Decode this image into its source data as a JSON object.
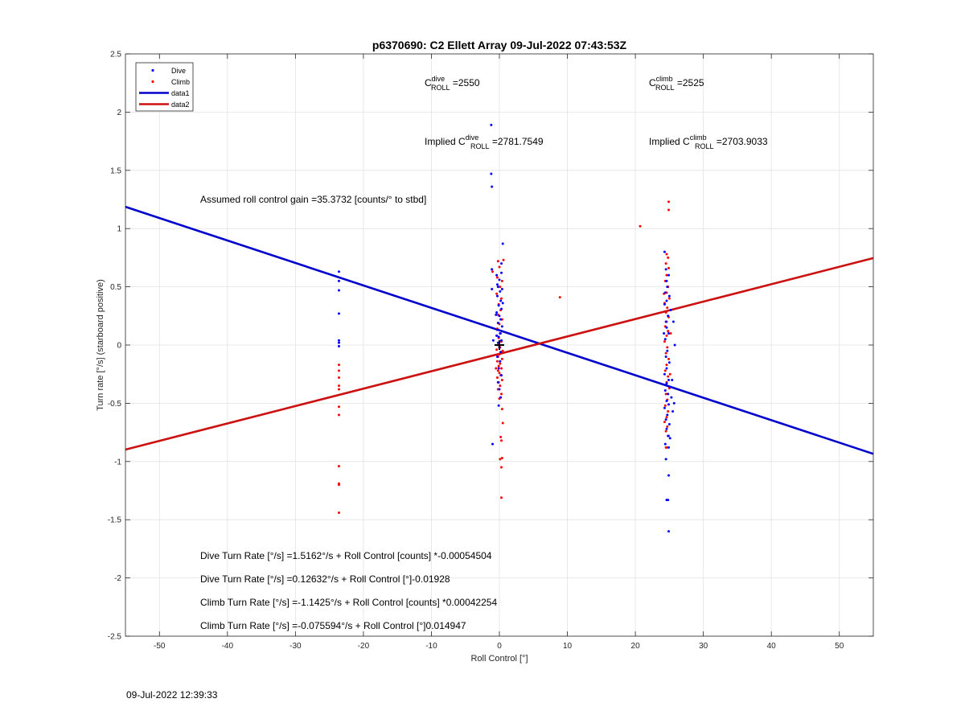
{
  "chart_data": {
    "type": "scatter",
    "title": "p6370690: C2 Ellett Array 09-Jul-2022 07:43:53Z",
    "xlabel": "Roll Control [°]",
    "ylabel": "Turn rate [°/s] (starboard positive)",
    "xlim": [
      -55,
      55
    ],
    "ylim": [
      -2.5,
      2.5
    ],
    "xticks": [
      -50,
      -40,
      -30,
      -20,
      -10,
      0,
      10,
      20,
      30,
      40,
      50
    ],
    "yticks": [
      -2.5,
      -2,
      -1.5,
      -1,
      -0.5,
      0,
      0.5,
      1,
      1.5,
      2,
      2.5
    ],
    "grid": true,
    "legend_position": "top-left",
    "legend": [
      "Dive",
      "Climb",
      "data1",
      "data2"
    ],
    "colors": {
      "dive": "#0000ff",
      "climb": "#ff0000",
      "data1": "#0000cc",
      "data2": "#cc1111",
      "marker": "#000000"
    },
    "lines": [
      {
        "name": "data1",
        "x": [
          -55,
          55
        ],
        "y": [
          1.1868,
          -0.9344
        ]
      },
      {
        "name": "data2",
        "x": [
          -55,
          55
        ],
        "y": [
          -0.8977,
          0.7464
        ]
      }
    ],
    "origin_marker": {
      "x": 0,
      "y": 0
    },
    "dive_points": [
      [
        -23.6,
        0.63
      ],
      [
        -23.6,
        0.55
      ],
      [
        -23.6,
        0.47
      ],
      [
        -23.6,
        0.27
      ],
      [
        -23.6,
        0.04
      ],
      [
        -23.6,
        0.02
      ],
      [
        -23.6,
        -0.01
      ],
      [
        -1.2,
        1.89
      ],
      [
        -1.2,
        1.47
      ],
      [
        -1.1,
        1.36
      ],
      [
        -1.1,
        0.65
      ],
      [
        -1.1,
        0.48
      ],
      [
        -1.0,
        -0.85
      ],
      [
        -0.9,
        0.04
      ],
      [
        0.5,
        0.87
      ],
      [
        0.3,
        0.62
      ],
      [
        -0.4,
        0.6
      ],
      [
        0.0,
        0.56
      ],
      [
        -0.2,
        0.5
      ],
      [
        0.1,
        0.46
      ],
      [
        -0.3,
        0.42
      ],
      [
        0.2,
        0.38
      ],
      [
        -0.1,
        0.34
      ],
      [
        0.3,
        0.31
      ],
      [
        -0.4,
        0.28
      ],
      [
        0.0,
        0.25
      ],
      [
        0.2,
        0.22
      ],
      [
        -0.2,
        0.19
      ],
      [
        0.4,
        0.16
      ],
      [
        -0.3,
        0.13
      ],
      [
        0.1,
        0.1
      ],
      [
        -0.1,
        0.07
      ],
      [
        0.3,
        0.04
      ],
      [
        -0.2,
        0.02
      ],
      [
        0.0,
        -0.02
      ],
      [
        0.2,
        -0.06
      ],
      [
        -0.3,
        -0.1
      ],
      [
        0.1,
        -0.14
      ],
      [
        -0.1,
        -0.2
      ],
      [
        0.3,
        -0.26
      ],
      [
        -0.2,
        -0.32
      ],
      [
        0.0,
        -0.38
      ],
      [
        0.2,
        -0.45
      ],
      [
        -0.1,
        -0.52
      ],
      [
        0.3,
        0.7
      ],
      [
        -0.3,
        0.52
      ],
      [
        0.5,
        0.36
      ],
      [
        -0.5,
        0.26
      ],
      [
        0.4,
        0.48
      ],
      [
        -0.4,
        0.08
      ],
      [
        24.3,
        0.8
      ],
      [
        24.5,
        0.65
      ],
      [
        24.9,
        0.6
      ],
      [
        24.6,
        0.55
      ],
      [
        24.7,
        0.5
      ],
      [
        24.4,
        0.45
      ],
      [
        25.0,
        0.42
      ],
      [
        24.6,
        0.38
      ],
      [
        24.3,
        0.35
      ],
      [
        25.2,
        0.3
      ],
      [
        24.8,
        0.25
      ],
      [
        24.5,
        0.2
      ],
      [
        25.6,
        0.2
      ],
      [
        24.6,
        0.15
      ],
      [
        24.9,
        0.1
      ],
      [
        24.4,
        0.05
      ],
      [
        25.8,
        0.0
      ],
      [
        24.7,
        -0.05
      ],
      [
        24.5,
        -0.1
      ],
      [
        25.0,
        -0.15
      ],
      [
        24.6,
        -0.2
      ],
      [
        24.3,
        -0.25
      ],
      [
        24.9,
        -0.3
      ],
      [
        24.6,
        -0.33
      ],
      [
        25.1,
        -0.36
      ],
      [
        24.4,
        -0.39
      ],
      [
        24.8,
        -0.42
      ],
      [
        25.3,
        -0.45
      ],
      [
        24.6,
        -0.48
      ],
      [
        24.9,
        -0.51
      ],
      [
        24.3,
        -0.54
      ],
      [
        25.5,
        -0.57
      ],
      [
        24.7,
        -0.6
      ],
      [
        24.5,
        -0.64
      ],
      [
        25.0,
        -0.68
      ],
      [
        24.6,
        -0.72
      ],
      [
        24.8,
        -0.78
      ],
      [
        24.4,
        -0.85
      ],
      [
        24.9,
        -0.88
      ],
      [
        24.5,
        -0.98
      ],
      [
        24.9,
        -1.12
      ],
      [
        24.6,
        -1.33
      ],
      [
        24.8,
        -1.33
      ],
      [
        24.9,
        -1.6
      ],
      [
        25.4,
        -0.3
      ],
      [
        25.7,
        -0.5
      ],
      [
        24.2,
        0.1
      ],
      [
        25.1,
        -0.8
      ]
    ],
    "climb_points": [
      [
        -23.6,
        -0.17
      ],
      [
        -23.6,
        -0.22
      ],
      [
        -23.6,
        -0.28
      ],
      [
        -23.6,
        -0.35
      ],
      [
        -23.6,
        -0.38
      ],
      [
        -23.6,
        -0.53
      ],
      [
        -23.6,
        -0.6
      ],
      [
        -23.6,
        -1.04
      ],
      [
        -23.6,
        -1.19
      ],
      [
        -23.6,
        -1.2
      ],
      [
        -23.6,
        -1.44
      ],
      [
        -1.0,
        0.63
      ],
      [
        -0.2,
        0.72
      ],
      [
        0.6,
        0.73
      ],
      [
        0.0,
        0.67
      ],
      [
        -0.3,
        0.58
      ],
      [
        0.4,
        0.55
      ],
      [
        0.1,
        0.5
      ],
      [
        -0.4,
        0.44
      ],
      [
        0.3,
        0.4
      ],
      [
        -0.1,
        0.35
      ],
      [
        0.2,
        0.3
      ],
      [
        -0.2,
        0.26
      ],
      [
        0.4,
        0.22
      ],
      [
        0.0,
        0.18
      ],
      [
        -0.3,
        0.14
      ],
      [
        0.2,
        0.1
      ],
      [
        -0.1,
        0.06
      ],
      [
        0.3,
        0.03
      ],
      [
        -0.2,
        0.0
      ],
      [
        0.1,
        -0.02
      ],
      [
        -0.4,
        -0.04
      ],
      [
        0.2,
        -0.06
      ],
      [
        0.0,
        -0.08
      ],
      [
        -0.2,
        -0.1
      ],
      [
        0.4,
        -0.12
      ],
      [
        -0.3,
        -0.14
      ],
      [
        0.1,
        -0.16
      ],
      [
        -0.1,
        -0.18
      ],
      [
        0.3,
        -0.2
      ],
      [
        -0.2,
        -0.22
      ],
      [
        0.0,
        -0.24
      ],
      [
        0.2,
        -0.26
      ],
      [
        -0.3,
        -0.28
      ],
      [
        0.4,
        -0.3
      ],
      [
        -0.1,
        -0.32
      ],
      [
        0.1,
        -0.35
      ],
      [
        -0.2,
        -0.38
      ],
      [
        0.3,
        -0.42
      ],
      [
        0.0,
        -0.46
      ],
      [
        0.4,
        -0.55
      ],
      [
        0.5,
        -0.67
      ],
      [
        0.2,
        -0.79
      ],
      [
        0.3,
        -0.82
      ],
      [
        0.4,
        -0.97
      ],
      [
        0.1,
        -0.98
      ],
      [
        0.3,
        -1.05
      ],
      [
        0.3,
        -1.31
      ],
      [
        -0.4,
        0.08
      ],
      [
        0.5,
        -0.05
      ],
      [
        -0.5,
        -0.2
      ],
      [
        8.9,
        0.41
      ],
      [
        20.7,
        1.02
      ],
      [
        24.9,
        1.23
      ],
      [
        24.9,
        1.16
      ],
      [
        24.6,
        0.78
      ],
      [
        24.8,
        0.75
      ],
      [
        24.5,
        0.7
      ],
      [
        24.9,
        0.66
      ],
      [
        24.6,
        0.6
      ],
      [
        24.4,
        0.55
      ],
      [
        24.8,
        0.5
      ],
      [
        24.6,
        0.45
      ],
      [
        25.0,
        0.4
      ],
      [
        24.3,
        0.36
      ],
      [
        24.7,
        0.32
      ],
      [
        24.5,
        0.28
      ],
      [
        24.9,
        0.24
      ],
      [
        24.6,
        0.2
      ],
      [
        24.4,
        0.16
      ],
      [
        24.8,
        0.12
      ],
      [
        24.6,
        0.08
      ],
      [
        24.3,
        0.03
      ],
      [
        24.7,
        -0.02
      ],
      [
        24.5,
        -0.07
      ],
      [
        24.9,
        -0.12
      ],
      [
        24.6,
        -0.17
      ],
      [
        24.4,
        -0.22
      ],
      [
        24.8,
        -0.27
      ],
      [
        24.6,
        -0.32
      ],
      [
        25.0,
        -0.37
      ],
      [
        24.5,
        -0.42
      ],
      [
        24.7,
        -0.47
      ],
      [
        24.4,
        -0.52
      ],
      [
        24.8,
        -0.57
      ],
      [
        24.6,
        -0.62
      ],
      [
        24.3,
        -0.66
      ],
      [
        24.7,
        -0.7
      ],
      [
        24.5,
        -0.74
      ],
      [
        24.9,
        -0.78
      ],
      [
        24.6,
        -0.88
      ],
      [
        24.5,
        -0.88
      ],
      [
        25.1,
        -0.25
      ],
      [
        24.2,
        0.44
      ],
      [
        25.2,
        0.1
      ]
    ],
    "annotations": {
      "c_roll_dive": {
        "prefix": "C",
        "sup": "dive",
        "sub": "ROLL",
        "suffix": " =2550"
      },
      "c_roll_climb": {
        "prefix": "C",
        "sup": "climb",
        "sub": "ROLL",
        "suffix": " =2525"
      },
      "implied_dive": {
        "prefix": "Implied C",
        "sup": "dive",
        "sub": "ROLL",
        "suffix": " =2781.7549"
      },
      "implied_climb": {
        "prefix": "Implied C",
        "sup": "climb",
        "sub": "ROLL",
        "suffix": " =2703.9033"
      },
      "gain": "Assumed roll control gain =35.3732 [counts/° to stbd]",
      "equations": [
        "Dive Turn Rate [°/s] =1.5162°/s + Roll Control [counts] *-0.00054504",
        "Dive Turn Rate [°/s] =0.12632°/s + Roll Control [°]-0.01928",
        "Climb Turn Rate [°/s] =-1.1425°/s + Roll Control [counts] *0.00042254",
        "Climb Turn Rate [°/s] =-0.075594°/s + Roll Control [°]0.014947"
      ]
    }
  },
  "footer": {
    "timestamp": "09-Jul-2022 12:39:33"
  }
}
